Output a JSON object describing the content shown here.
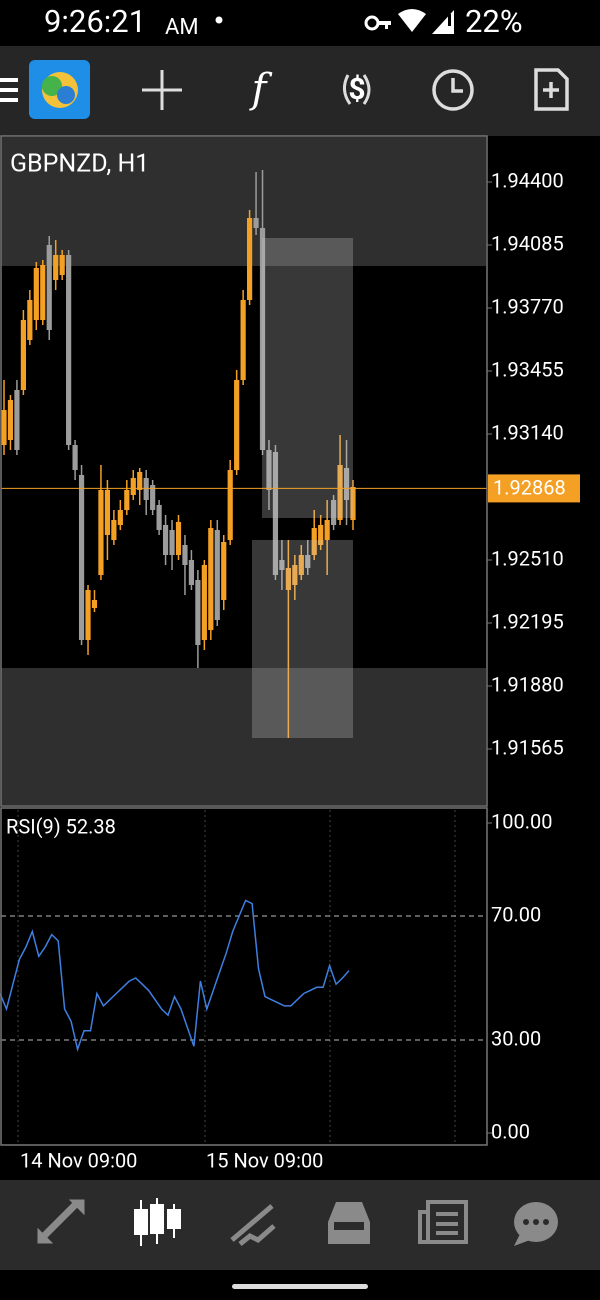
{
  "status_bar": {
    "time": "9:26:21",
    "ampm": "AM",
    "battery": "22%"
  },
  "chart": {
    "symbol": "GBPNZD, H1",
    "ylim": [
      1.91285,
      1.94625
    ],
    "yticks": [
      {
        "value": 1.944,
        "label": "1.94400"
      },
      {
        "value": 1.94085,
        "label": "1.94085"
      },
      {
        "value": 1.9377,
        "label": "1.93770"
      },
      {
        "value": 1.93455,
        "label": "1.93455"
      },
      {
        "value": 1.9314,
        "label": "1.93140"
      },
      {
        "value": 1.9251,
        "label": "1.92510"
      },
      {
        "value": 1.92195,
        "label": "1.92195"
      },
      {
        "value": 1.9188,
        "label": "1.91880"
      },
      {
        "value": 1.91565,
        "label": "1.91565"
      }
    ],
    "current_price": 1.92868,
    "bull_color": "#f4a024",
    "bear_color": "#9c9c9c",
    "x_labels": [
      "14 Nov 09:00",
      "15 Nov 09:00"
    ],
    "candles": {
      "open": [
        1.93085,
        1.9311,
        1.9336,
        1.9336,
        1.9361,
        1.9371,
        1.9371,
        1.94085,
        1.9391,
        1.93935,
        1.94035,
        1.93085,
        1.92935,
        1.9211,
        1.9227,
        1.92435,
        1.92635,
        1.9261,
        1.92685,
        1.9276,
        1.92835,
        1.9286,
        1.9292,
        1.92885,
        1.92785,
        1.92685,
        1.9266,
        1.92535,
        1.92585,
        1.9251,
        1.9241,
        1.9211,
        1.9216,
        1.9266,
        1.9231,
        1.9261,
        1.9296,
        1.9341,
        1.9381,
        1.9422,
        1.9417,
        1.9306,
        1.9305,
        1.9251,
        1.9236,
        1.92385,
        1.92435,
        1.92535,
        1.92535,
        1.92585,
        1.9261,
        1.9281,
        1.9271,
        1.9297,
        1.9271
      ],
      "high": [
        1.9341,
        1.93335,
        1.9341,
        1.9376,
        1.9386,
        1.94,
        1.9401,
        1.9413,
        1.9411,
        1.9406,
        1.9406,
        1.9311,
        1.92985,
        1.92385,
        1.9236,
        1.92985,
        1.9291,
        1.9276,
        1.9281,
        1.9291,
        1.9296,
        1.9297,
        1.9296,
        1.9291,
        1.9281,
        1.92735,
        1.9271,
        1.92735,
        1.92635,
        1.9256,
        1.9246,
        1.9251,
        1.9271,
        1.9271,
        1.92635,
        1.9301,
        1.9346,
        1.9386,
        1.9426,
        1.9445,
        1.9446,
        1.9311,
        1.93085,
        1.9261,
        1.9261,
        1.92535,
        1.92585,
        1.9261,
        1.9276,
        1.92735,
        1.9281,
        1.92835,
        1.93135,
        1.9311,
        1.9291
      ],
      "low": [
        1.93035,
        1.9306,
        1.93035,
        1.93335,
        1.93585,
        1.9366,
        1.93685,
        1.9361,
        1.9386,
        1.9391,
        1.9306,
        1.9291,
        1.92085,
        1.92035,
        1.9225,
        1.9241,
        1.9251,
        1.92585,
        1.9266,
        1.92735,
        1.9281,
        1.92785,
        1.92735,
        1.92735,
        1.92635,
        1.92485,
        1.9246,
        1.9251,
        1.92335,
        1.9236,
        1.9197,
        1.9206,
        1.9211,
        1.9218,
        1.9226,
        1.92585,
        1.92935,
        1.93385,
        1.93785,
        1.94135,
        1.93035,
        1.9276,
        1.9241,
        1.9236,
        1.9162,
        1.9231,
        1.9241,
        1.92435,
        1.9251,
        1.9256,
        1.92435,
        1.9266,
        1.92685,
        1.92685,
        1.9266
      ],
      "close": [
        1.9326,
        1.9331,
        1.9306,
        1.9371,
        1.9381,
        1.9397,
        1.93985,
        1.9366,
        1.94035,
        1.94035,
        1.93085,
        1.9296,
        1.9211,
        1.9236,
        1.9231,
        1.9286,
        1.9286,
        1.9271,
        1.9276,
        1.9286,
        1.9292,
        1.9295,
        1.9281,
        1.9276,
        1.9266,
        1.92535,
        1.92535,
        1.927,
        1.92485,
        1.92385,
        1.92085,
        1.92485,
        1.9267,
        1.9221,
        1.926,
        1.9296,
        1.9341,
        1.9381,
        1.9422,
        1.9417,
        1.9306,
        1.9286,
        1.92435,
        1.9246,
        1.9247,
        1.92485,
        1.92535,
        1.9247,
        1.9267,
        1.92685,
        1.9271,
        1.92685,
        1.92985,
        1.9281,
        1.92875
      ]
    }
  },
  "rsi": {
    "label": "RSI(9) 52.38",
    "color": "#3f7fe0",
    "ylim": [
      0,
      100
    ],
    "yticks": [
      {
        "value": 100,
        "label": "100.00"
      },
      {
        "value": 70,
        "label": "70.00"
      },
      {
        "value": 30,
        "label": "30.00"
      },
      {
        "value": 0,
        "label": "0.00"
      }
    ],
    "values": [
      45,
      40,
      48,
      56,
      60,
      65,
      57,
      60,
      64,
      62,
      40,
      36,
      27,
      33,
      33,
      45,
      41,
      43,
      45,
      47,
      49,
      50,
      48,
      46,
      43,
      40,
      38,
      44,
      40,
      34,
      28,
      49,
      40,
      46,
      52,
      58,
      65,
      70,
      75,
      74,
      53,
      44,
      43,
      42,
      41,
      41,
      43,
      45,
      46,
      47,
      47,
      54,
      48,
      50,
      52.38
    ]
  }
}
